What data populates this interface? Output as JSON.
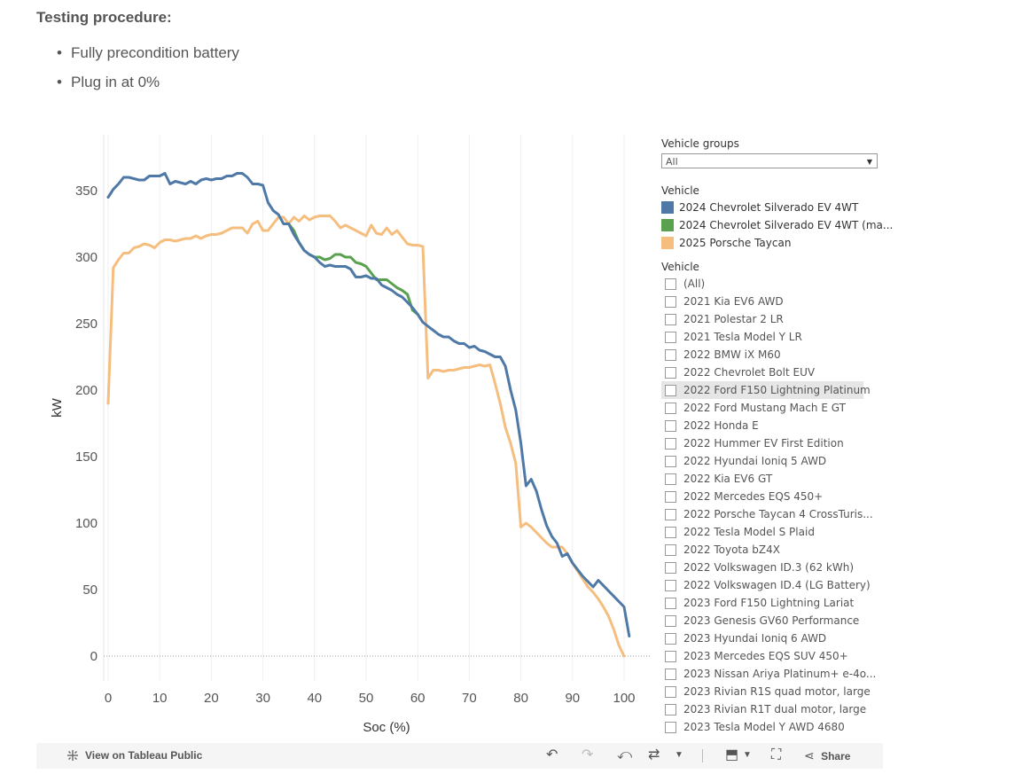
{
  "header": {
    "title": "Testing procedure:",
    "bullets": [
      "Fully precondition battery",
      "Plug in at 0%"
    ]
  },
  "chart_data": {
    "type": "line",
    "xlabel": "Soc (%)",
    "ylabel": "kW",
    "xlim": [
      0,
      100
    ],
    "ylim": [
      -20,
      380
    ],
    "xticks": [
      0,
      10,
      20,
      30,
      40,
      50,
      60,
      70,
      80,
      90,
      100
    ],
    "yticks": [
      0,
      50,
      100,
      150,
      200,
      250,
      300,
      350
    ],
    "grid": "vertical",
    "zero_line": "dotted",
    "series": [
      {
        "name": "2025 Porsche Taycan",
        "color": "#F5BE7F",
        "points": [
          [
            0,
            190
          ],
          [
            1,
            292
          ],
          [
            2,
            298
          ],
          [
            3,
            303
          ],
          [
            4,
            303
          ],
          [
            5,
            307
          ],
          [
            6,
            308
          ],
          [
            7,
            310
          ],
          [
            8,
            309
          ],
          [
            9,
            307
          ],
          [
            10,
            311
          ],
          [
            11,
            313
          ],
          [
            12,
            313
          ],
          [
            13,
            312
          ],
          [
            14,
            313
          ],
          [
            15,
            314
          ],
          [
            16,
            314
          ],
          [
            17,
            316
          ],
          [
            18,
            314
          ],
          [
            19,
            316
          ],
          [
            20,
            317
          ],
          [
            21,
            317
          ],
          [
            22,
            318
          ],
          [
            23,
            320
          ],
          [
            24,
            322
          ],
          [
            25,
            322
          ],
          [
            26,
            322
          ],
          [
            27,
            318
          ],
          [
            28,
            325
          ],
          [
            29,
            327
          ],
          [
            30,
            320
          ],
          [
            31,
            320
          ],
          [
            32,
            325
          ],
          [
            33,
            330
          ],
          [
            34,
            330
          ],
          [
            35,
            325
          ],
          [
            36,
            330
          ],
          [
            37,
            327
          ],
          [
            38,
            331
          ],
          [
            39,
            328
          ],
          [
            40,
            330
          ],
          [
            41,
            331
          ],
          [
            42,
            331
          ],
          [
            43,
            331
          ],
          [
            44,
            327
          ],
          [
            45,
            322
          ],
          [
            46,
            324
          ],
          [
            47,
            322
          ],
          [
            48,
            320
          ],
          [
            49,
            318
          ],
          [
            50,
            316
          ],
          [
            51,
            324
          ],
          [
            52,
            318
          ],
          [
            53,
            317
          ],
          [
            54,
            322
          ],
          [
            55,
            317
          ],
          [
            56,
            320
          ],
          [
            57,
            315
          ],
          [
            58,
            310
          ],
          [
            59,
            309
          ],
          [
            60,
            309
          ],
          [
            61,
            308
          ],
          [
            62,
            209
          ],
          [
            63,
            215
          ],
          [
            64,
            215
          ],
          [
            65,
            214
          ],
          [
            66,
            215
          ],
          [
            67,
            215
          ],
          [
            68,
            216
          ],
          [
            69,
            217
          ],
          [
            70,
            217
          ],
          [
            71,
            218
          ],
          [
            72,
            219
          ],
          [
            73,
            218
          ],
          [
            74,
            219
          ],
          [
            75,
            205
          ],
          [
            76,
            190
          ],
          [
            77,
            172
          ],
          [
            78,
            160
          ],
          [
            79,
            145
          ],
          [
            80,
            97
          ],
          [
            81,
            100
          ],
          [
            82,
            97
          ],
          [
            83,
            93
          ],
          [
            84,
            89
          ],
          [
            85,
            85
          ],
          [
            86,
            82
          ],
          [
            87,
            82
          ],
          [
            88,
            82
          ],
          [
            89,
            77
          ],
          [
            90,
            70
          ],
          [
            91,
            64
          ],
          [
            92,
            58
          ],
          [
            93,
            52
          ],
          [
            94,
            48
          ],
          [
            95,
            43
          ],
          [
            96,
            37
          ],
          [
            97,
            30
          ],
          [
            98,
            20
          ],
          [
            99,
            8
          ],
          [
            100,
            0
          ]
        ]
      },
      {
        "name": "2024 Chevrolet Silverado EV 4WT (ma...",
        "color": "#59A14F",
        "points": [
          [
            35,
            325
          ],
          [
            36,
            320
          ],
          [
            37,
            311
          ],
          [
            38,
            305
          ],
          [
            39,
            302
          ],
          [
            40,
            300
          ],
          [
            41,
            300
          ],
          [
            42,
            298
          ],
          [
            43,
            299
          ],
          [
            44,
            302
          ],
          [
            45,
            302
          ],
          [
            46,
            300
          ],
          [
            47,
            300
          ],
          [
            48,
            296
          ],
          [
            49,
            295
          ],
          [
            50,
            293
          ],
          [
            51,
            288
          ],
          [
            52,
            283
          ],
          [
            53,
            283
          ],
          [
            54,
            283
          ],
          [
            55,
            280
          ],
          [
            56,
            277
          ],
          [
            57,
            275
          ],
          [
            58,
            272
          ],
          [
            59,
            260
          ],
          [
            60,
            257
          ]
        ]
      },
      {
        "name": "2024 Chevrolet Silverado EV 4WT",
        "color": "#4E79A7",
        "points": [
          [
            0,
            345
          ],
          [
            1,
            351
          ],
          [
            2,
            355
          ],
          [
            3,
            360
          ],
          [
            4,
            360
          ],
          [
            5,
            359
          ],
          [
            6,
            358
          ],
          [
            7,
            358
          ],
          [
            8,
            361
          ],
          [
            9,
            361
          ],
          [
            10,
            361
          ],
          [
            11,
            363
          ],
          [
            12,
            355
          ],
          [
            13,
            357
          ],
          [
            14,
            356
          ],
          [
            15,
            355
          ],
          [
            16,
            357
          ],
          [
            17,
            355
          ],
          [
            18,
            358
          ],
          [
            19,
            359
          ],
          [
            20,
            358
          ],
          [
            21,
            359
          ],
          [
            22,
            359
          ],
          [
            23,
            361
          ],
          [
            24,
            361
          ],
          [
            25,
            363
          ],
          [
            26,
            363
          ],
          [
            27,
            360
          ],
          [
            28,
            355
          ],
          [
            29,
            355
          ],
          [
            30,
            354
          ],
          [
            31,
            341
          ],
          [
            32,
            335
          ],
          [
            33,
            332
          ],
          [
            34,
            325
          ],
          [
            35,
            325
          ],
          [
            36,
            317
          ],
          [
            37,
            311
          ],
          [
            38,
            305
          ],
          [
            39,
            302
          ],
          [
            40,
            300
          ],
          [
            41,
            296
          ],
          [
            42,
            293
          ],
          [
            43,
            294
          ],
          [
            44,
            293
          ],
          [
            45,
            293
          ],
          [
            46,
            293
          ],
          [
            47,
            291
          ],
          [
            48,
            285
          ],
          [
            49,
            285
          ],
          [
            50,
            286
          ],
          [
            51,
            284
          ],
          [
            52,
            284
          ],
          [
            53,
            279
          ],
          [
            54,
            277
          ],
          [
            55,
            275
          ],
          [
            56,
            272
          ],
          [
            57,
            270
          ],
          [
            58,
            266
          ],
          [
            59,
            262
          ],
          [
            60,
            257
          ],
          [
            61,
            251
          ],
          [
            62,
            248
          ],
          [
            63,
            245
          ],
          [
            64,
            242
          ],
          [
            65,
            240
          ],
          [
            66,
            240
          ],
          [
            67,
            237
          ],
          [
            68,
            235
          ],
          [
            69,
            235
          ],
          [
            70,
            232
          ],
          [
            71,
            233
          ],
          [
            72,
            230
          ],
          [
            73,
            229
          ],
          [
            74,
            227
          ],
          [
            75,
            225
          ],
          [
            76,
            225
          ],
          [
            77,
            218
          ],
          [
            78,
            200
          ],
          [
            79,
            185
          ],
          [
            80,
            160
          ],
          [
            81,
            128
          ],
          [
            82,
            133
          ],
          [
            83,
            124
          ],
          [
            84,
            110
          ],
          [
            85,
            98
          ],
          [
            86,
            90
          ],
          [
            87,
            85
          ],
          [
            88,
            75
          ],
          [
            89,
            77
          ],
          [
            90,
            70
          ],
          [
            91,
            65
          ],
          [
            92,
            60
          ],
          [
            93,
            56
          ],
          [
            94,
            52
          ],
          [
            95,
            57
          ],
          [
            96,
            53
          ],
          [
            97,
            49
          ],
          [
            98,
            45
          ],
          [
            99,
            41
          ],
          [
            100,
            37
          ],
          [
            101,
            15
          ]
        ]
      }
    ]
  },
  "legend": {
    "groups_title": "Vehicle groups",
    "groups_value": "All",
    "color_title": "Vehicle",
    "color_items": [
      {
        "label": "2024 Chevrolet Silverado EV 4WT",
        "color": "#4E79A7"
      },
      {
        "label": "2024 Chevrolet Silverado EV 4WT (ma...",
        "color": "#59A14F"
      },
      {
        "label": "2025 Porsche Taycan",
        "color": "#F5BE7F"
      }
    ],
    "filter_title": "Vehicle",
    "filter_items": [
      "(All)",
      "2021 Kia EV6 AWD",
      "2021 Polestar 2 LR",
      "2021 Tesla Model Y LR",
      "2022 BMW iX M60",
      "2022 Chevrolet Bolt EUV",
      "2022 Ford F150 Lightning Platinum",
      "2022 Ford Mustang Mach E GT",
      "2022 Honda E",
      "2022 Hummer EV First Edition",
      "2022 Hyundai Ioniq 5 AWD",
      "2022 Kia EV6 GT",
      "2022 Mercedes EQS 450+",
      "2022 Porsche Taycan 4 CrossTuris...",
      "2022 Tesla Model S Plaid",
      "2022 Toyota bZ4X",
      "2022 Volkswagen ID.3 (62 kWh)",
      "2022 Volkswagen ID.4 (LG Battery)",
      "2023 Ford F150 Lightning Lariat",
      "2023 Genesis GV60 Performance",
      "2023 Hyundai Ioniq 6 AWD",
      "2023 Mercedes EQS SUV 450+",
      "2023 Nissan Ariya Platinum+ e-4o...",
      "2023 Rivian R1S quad motor, large",
      "2023 Rivian R1T dual motor, large",
      "2023 Tesla Model Y AWD 4680"
    ],
    "highlighted_index": 6
  },
  "toolbar": {
    "view_label": "View on Tableau Public",
    "share_label": "Share"
  }
}
